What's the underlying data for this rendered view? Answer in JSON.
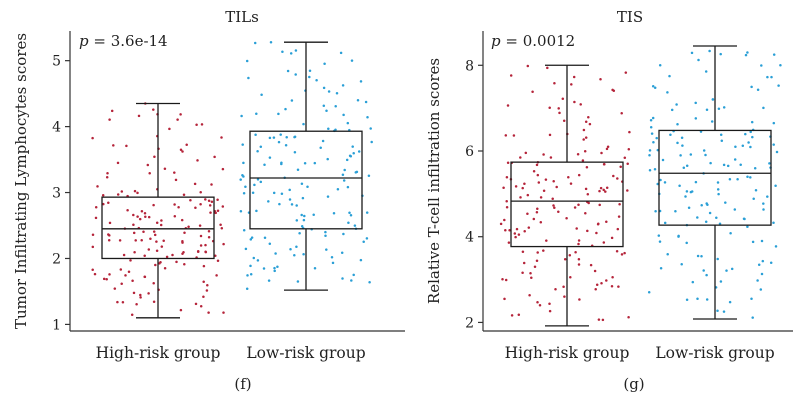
{
  "chart_data": [
    {
      "type": "box",
      "title": "TILs",
      "ylabel": "Tumor Infiltrating Lymphocytes scores",
      "annotation": {
        "p_label": "p",
        "p_value": " = 3.6e-14"
      },
      "caption": "(f)",
      "ylim": [
        0.9,
        5.45
      ],
      "yticks": [
        1,
        2,
        3,
        4,
        5
      ],
      "categories": [
        "High-risk group",
        "Low-risk group"
      ],
      "colors": [
        "#b5243a",
        "#2a9fd6"
      ],
      "boxes": [
        {
          "name": "High-risk group",
          "min": 1.1,
          "q1": 2.0,
          "median": 2.45,
          "q3": 2.93,
          "max": 4.35,
          "n_points": 170
        },
        {
          "name": "Low-risk group",
          "min": 1.52,
          "q1": 2.45,
          "median": 3.22,
          "q3": 3.93,
          "max": 5.28,
          "n_points": 160
        }
      ]
    },
    {
      "type": "box",
      "title": "TIS",
      "ylabel": "Relative T-cell infiltration scores",
      "annotation": {
        "p_label": "p",
        "p_value": " = 0.0012"
      },
      "caption": "(g)",
      "ylim": [
        1.8,
        8.8
      ],
      "yticks": [
        2,
        4,
        6,
        8
      ],
      "categories": [
        "High-risk group",
        "Low-risk group"
      ],
      "colors": [
        "#b5243a",
        "#2a9fd6"
      ],
      "boxes": [
        {
          "name": "High-risk group",
          "min": 1.92,
          "q1": 3.77,
          "median": 4.83,
          "q3": 5.74,
          "max": 8.0,
          "n_points": 170
        },
        {
          "name": "Low-risk group",
          "min": 2.08,
          "q1": 4.27,
          "median": 5.48,
          "q3": 6.48,
          "max": 8.45,
          "n_points": 160
        }
      ]
    }
  ]
}
